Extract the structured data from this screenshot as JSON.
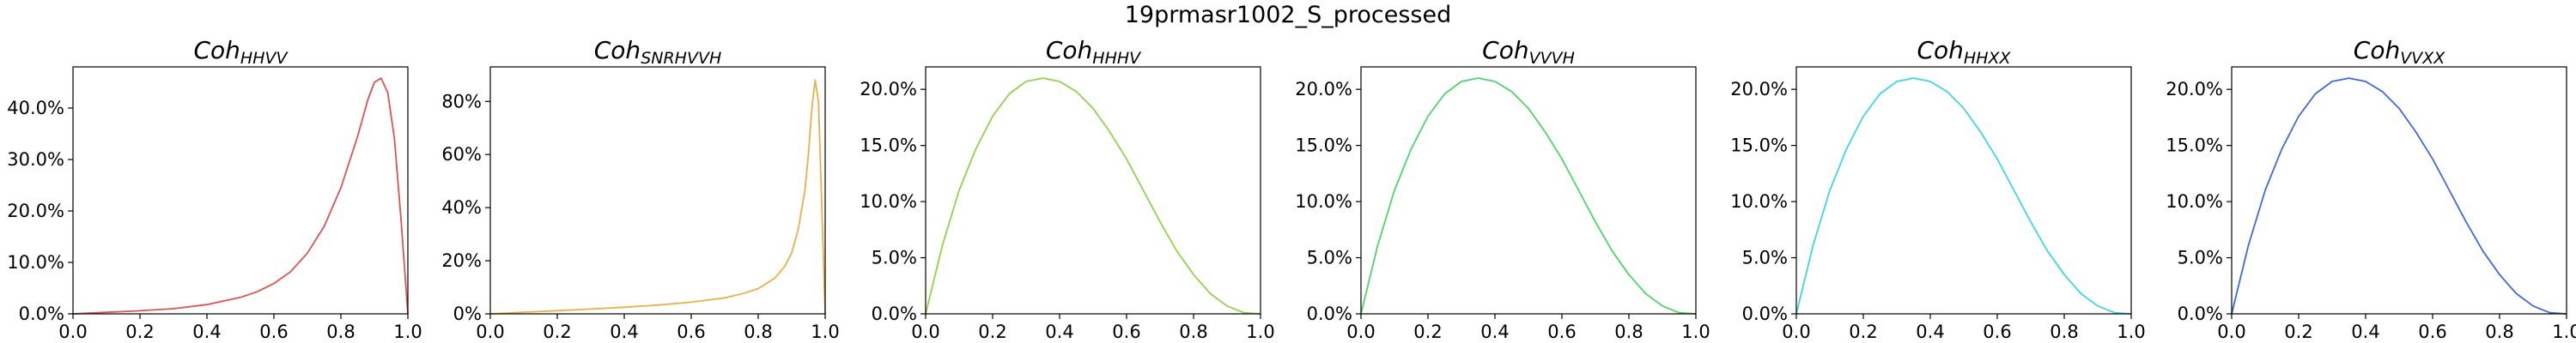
{
  "figure": {
    "title": "19prmasr1002_S_processed"
  },
  "chart_data": [
    {
      "type": "line",
      "title": "Coh",
      "title_sub": "HHVV",
      "color": "#e05252",
      "xlim": [
        0,
        1
      ],
      "ylim": [
        0,
        48.0
      ],
      "x_ticks": [
        0.0,
        0.2,
        0.4,
        0.6,
        0.8,
        1.0
      ],
      "x_tick_labels": [
        "0.0",
        "0.2",
        "0.4",
        "0.6",
        "0.8",
        "1.0"
      ],
      "y_ticks": [
        0,
        10,
        20,
        30,
        40
      ],
      "y_tick_labels": [
        "0.0%",
        "10.0%",
        "20.0%",
        "30.0%",
        "40.0%"
      ],
      "series": [
        {
          "x": [
            0.0,
            0.1,
            0.2,
            0.3,
            0.4,
            0.5,
            0.55,
            0.6,
            0.65,
            0.7,
            0.75,
            0.8,
            0.85,
            0.88,
            0.9,
            0.92,
            0.94,
            0.96,
            0.98,
            1.0
          ],
          "values": [
            0.0,
            0.3,
            0.6,
            1.0,
            1.8,
            3.2,
            4.3,
            5.9,
            8.2,
            11.8,
            17.0,
            24.5,
            34.5,
            41.5,
            45.0,
            45.8,
            43.0,
            34.0,
            18.0,
            0.0
          ]
        }
      ]
    },
    {
      "type": "line",
      "title": "Coh",
      "title_sub": "SNRHVVH",
      "color": "#e8b04d",
      "xlim": [
        0,
        1
      ],
      "ylim": [
        0,
        93.0
      ],
      "x_ticks": [
        0.0,
        0.2,
        0.4,
        0.6,
        0.8,
        1.0
      ],
      "x_tick_labels": [
        "0.0",
        "0.2",
        "0.4",
        "0.6",
        "0.8",
        "1.0"
      ],
      "y_ticks": [
        0,
        20,
        40,
        60,
        80
      ],
      "y_tick_labels": [
        "0%",
        "20%",
        "40%",
        "60%",
        "80%"
      ],
      "series": [
        {
          "x": [
            0.0,
            0.1,
            0.2,
            0.3,
            0.4,
            0.5,
            0.6,
            0.7,
            0.75,
            0.8,
            0.85,
            0.88,
            0.9,
            0.92,
            0.94,
            0.95,
            0.96,
            0.97,
            0.98,
            0.99,
            1.0
          ],
          "values": [
            0.0,
            0.6,
            1.2,
            1.8,
            2.5,
            3.3,
            4.4,
            6.0,
            7.5,
            9.5,
            13.5,
            18.0,
            23.0,
            32.0,
            47.0,
            60.0,
            77.0,
            88.0,
            80.0,
            40.0,
            0.0
          ]
        }
      ]
    },
    {
      "type": "line",
      "title": "Coh",
      "title_sub": "HHHV",
      "color": "#8fd44a",
      "xlim": [
        0,
        1
      ],
      "ylim": [
        0,
        22.0
      ],
      "x_ticks": [
        0.0,
        0.2,
        0.4,
        0.6,
        0.8,
        1.0
      ],
      "x_tick_labels": [
        "0.0",
        "0.2",
        "0.4",
        "0.6",
        "0.8",
        "1.0"
      ],
      "y_ticks": [
        0,
        5,
        10,
        15,
        20
      ],
      "y_tick_labels": [
        "0.0%",
        "5.0%",
        "10.0%",
        "15.0%",
        "20.0%"
      ],
      "series": [
        {
          "x": [
            0.0,
            0.05,
            0.1,
            0.15,
            0.2,
            0.25,
            0.3,
            0.35,
            0.4,
            0.45,
            0.5,
            0.55,
            0.6,
            0.65,
            0.7,
            0.75,
            0.8,
            0.85,
            0.9,
            0.95,
            1.0
          ],
          "values": [
            0.0,
            6.1,
            11.0,
            14.7,
            17.6,
            19.6,
            20.7,
            21.0,
            20.7,
            19.8,
            18.3,
            16.2,
            13.8,
            11.0,
            8.2,
            5.6,
            3.5,
            1.8,
            0.7,
            0.1,
            0.0
          ]
        }
      ]
    },
    {
      "type": "line",
      "title": "Coh",
      "title_sub": "VVVH",
      "color": "#4fd46a",
      "xlim": [
        0,
        1
      ],
      "ylim": [
        0,
        22.0
      ],
      "x_ticks": [
        0.0,
        0.2,
        0.4,
        0.6,
        0.8,
        1.0
      ],
      "x_tick_labels": [
        "0.0",
        "0.2",
        "0.4",
        "0.6",
        "0.8",
        "1.0"
      ],
      "y_ticks": [
        0,
        5,
        10,
        15,
        20
      ],
      "y_tick_labels": [
        "0.0%",
        "5.0%",
        "10.0%",
        "15.0%",
        "20.0%"
      ],
      "series": [
        {
          "x": [
            0.0,
            0.05,
            0.1,
            0.15,
            0.2,
            0.25,
            0.3,
            0.35,
            0.4,
            0.45,
            0.5,
            0.55,
            0.6,
            0.65,
            0.7,
            0.75,
            0.8,
            0.85,
            0.9,
            0.95,
            1.0
          ],
          "values": [
            0.0,
            6.1,
            11.0,
            14.7,
            17.6,
            19.6,
            20.7,
            21.0,
            20.7,
            19.8,
            18.3,
            16.2,
            13.8,
            11.0,
            8.2,
            5.6,
            3.5,
            1.8,
            0.7,
            0.1,
            0.0
          ]
        }
      ]
    },
    {
      "type": "line",
      "title": "Coh",
      "title_sub": "HHXX",
      "color": "#3fd6e4",
      "xlim": [
        0,
        1
      ],
      "ylim": [
        0,
        22.0
      ],
      "x_ticks": [
        0.0,
        0.2,
        0.4,
        0.6,
        0.8,
        1.0
      ],
      "x_tick_labels": [
        "0.0",
        "0.2",
        "0.4",
        "0.6",
        "0.8",
        "1.0"
      ],
      "y_ticks": [
        0,
        5,
        10,
        15,
        20
      ],
      "y_tick_labels": [
        "0.0%",
        "5.0%",
        "10.0%",
        "15.0%",
        "20.0%"
      ],
      "series": [
        {
          "x": [
            0.0,
            0.05,
            0.1,
            0.15,
            0.2,
            0.25,
            0.3,
            0.35,
            0.4,
            0.45,
            0.5,
            0.55,
            0.6,
            0.65,
            0.7,
            0.75,
            0.8,
            0.85,
            0.9,
            0.95,
            1.0
          ],
          "values": [
            0.0,
            6.1,
            11.0,
            14.7,
            17.6,
            19.6,
            20.7,
            21.0,
            20.7,
            19.8,
            18.3,
            16.2,
            13.8,
            11.0,
            8.2,
            5.6,
            3.5,
            1.8,
            0.7,
            0.1,
            0.0
          ]
        }
      ]
    },
    {
      "type": "line",
      "title": "Coh",
      "title_sub": "VVXX",
      "color": "#3f6ad6",
      "xlim": [
        0,
        1
      ],
      "ylim": [
        0,
        22.0
      ],
      "x_ticks": [
        0.0,
        0.2,
        0.4,
        0.6,
        0.8,
        1.0
      ],
      "x_tick_labels": [
        "0.0",
        "0.2",
        "0.4",
        "0.6",
        "0.8",
        "1.0"
      ],
      "y_ticks": [
        0,
        5,
        10,
        15,
        20
      ],
      "y_tick_labels": [
        "0.0%",
        "5.0%",
        "10.0%",
        "15.0%",
        "20.0%"
      ],
      "series": [
        {
          "x": [
            0.0,
            0.05,
            0.1,
            0.15,
            0.2,
            0.25,
            0.3,
            0.35,
            0.4,
            0.45,
            0.5,
            0.55,
            0.6,
            0.65,
            0.7,
            0.75,
            0.8,
            0.85,
            0.9,
            0.95,
            1.0
          ],
          "values": [
            0.0,
            6.1,
            11.0,
            14.7,
            17.6,
            19.6,
            20.7,
            21.0,
            20.7,
            19.8,
            18.3,
            16.2,
            13.8,
            11.0,
            8.2,
            5.6,
            3.5,
            1.8,
            0.7,
            0.1,
            0.0
          ]
        }
      ]
    }
  ]
}
